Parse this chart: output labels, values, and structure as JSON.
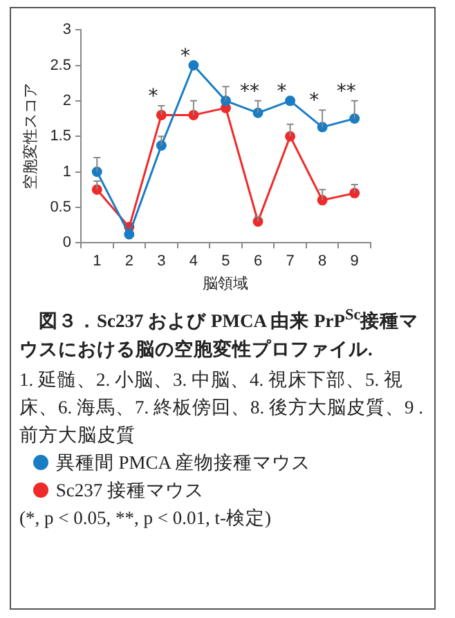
{
  "chart_data": {
    "type": "line",
    "title": "図３．Sc237 および PMCA 由来 PrP$^{Sc}$接種マウスにおける脳の空胞変性プロファイル.",
    "xlabel": "脳領域",
    "ylabel": "空胞変性スコア",
    "categories": [
      "1",
      "2",
      "3",
      "4",
      "5",
      "6",
      "7",
      "8",
      "9"
    ],
    "series": [
      {
        "name": "異種間 PMCA 産物接種マウス",
        "color": "#1a7dc4",
        "values": [
          1.0,
          0.12,
          1.37,
          2.5,
          2.0,
          1.83,
          2.0,
          1.63,
          1.75
        ],
        "errors": [
          [
            1.0,
            1.2
          ],
          null,
          [
            1.37,
            1.5
          ],
          null,
          [
            2.0,
            2.2
          ],
          [
            1.83,
            2.0
          ],
          null,
          [
            1.63,
            1.87
          ],
          [
            1.75,
            2.0
          ]
        ]
      },
      {
        "name": "Sc237 接種マウス",
        "color": "#ee2a2a",
        "values": [
          0.75,
          0.22,
          1.8,
          1.8,
          1.9,
          0.3,
          1.5,
          0.6,
          0.7
        ],
        "errors": [
          [
            0.75,
            0.87
          ],
          null,
          [
            1.8,
            1.93
          ],
          [
            1.8,
            2.0
          ],
          null,
          [
            0.3,
            0.37
          ],
          [
            1.5,
            1.67
          ],
          [
            0.6,
            0.75
          ],
          [
            0.7,
            0.82
          ]
        ]
      }
    ],
    "ylim": [
      0,
      3
    ],
    "yticks": [
      0,
      0.5,
      1,
      1.5,
      2,
      2.5,
      3
    ],
    "grid": false,
    "marker": "circle",
    "line_style": "solid",
    "legend": "bottom",
    "annotations": [
      "1. 延髄、2. 小脳、3. 中脳、4. 視床下部、5. 視床、6. 海馬、7. 終板傍回、8. 後方大脳皮質、9 .前方大脳皮質",
      "(*, p < 0.05, **, p < 0.01, t-検定)",
      {
        "text": "*",
        "x": "3",
        "y": 1.8
      },
      {
        "text": "*",
        "x": "4",
        "y": 2.5
      },
      {
        "text": "**",
        "x": "6",
        "y": 1.83
      },
      {
        "text": "*",
        "x": "7",
        "y": 2.0
      },
      {
        "text": "*",
        "x": "8",
        "y": 1.63
      },
      {
        "text": "**",
        "x": "9",
        "y": 1.75
      }
    ]
  }
}
